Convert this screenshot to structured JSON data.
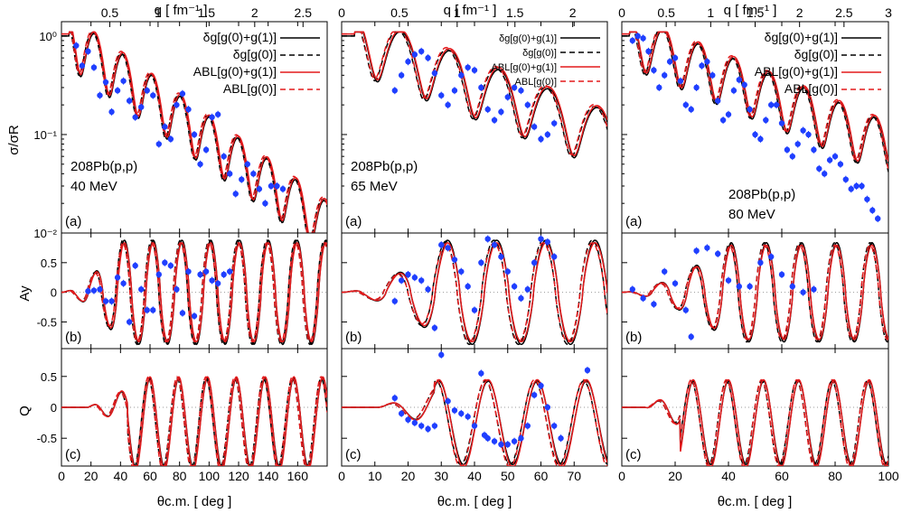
{
  "figure": {
    "top_axis_label": "q [ fm⁻¹ ]",
    "bottom_axis_label": "θc.m. [ deg ]",
    "panel_letters": [
      "(a)",
      "(b)",
      "(c)"
    ],
    "row_ylabels": [
      "σ/σR",
      "Ay",
      "Q"
    ],
    "legend": [
      "δg[g(0)+g(1)]",
      "δg[g(0)]",
      "ABL[g(0)+g(1)]",
      "ABL[g(0)]"
    ],
    "colors": {
      "black": "#000000",
      "red": "#e41a1c",
      "data": "#1f3fff",
      "zero_line": "#999999"
    }
  },
  "chart_data": [
    {
      "type": "line",
      "column": 0,
      "reaction": "208Pb(p,p)",
      "energy": "40 MeV",
      "x_range": [
        0,
        180
      ],
      "x_ticks": [
        0,
        20,
        40,
        60,
        80,
        100,
        120,
        140,
        160
      ],
      "q_range": [
        0,
        2.75
      ],
      "q_ticks": [
        "0.5",
        "1",
        "1.5",
        "2",
        "2.5"
      ],
      "q_tick_values": [
        0.5,
        1.0,
        1.5,
        2.0,
        2.5
      ],
      "cross_section": {
        "ylim": [
          0.01,
          1.4
        ],
        "scale": "log",
        "y_ticks": [
          "10⁻²",
          "10⁻¹",
          "10⁰"
        ],
        "model": {
          "x0": 5,
          "period": 19.5,
          "drop": 0.025,
          "phase": 0.6,
          "amp": 0.55,
          "noise": 0.08
        },
        "data": {
          "x": [
            10,
            14,
            18,
            22,
            26,
            30,
            34,
            38,
            42,
            46,
            50,
            54,
            58,
            62,
            66,
            70,
            74,
            78,
            82,
            86,
            90,
            94,
            98,
            102,
            106,
            110,
            114,
            118,
            122,
            126,
            130,
            134,
            138,
            142,
            146,
            150
          ],
          "y": [
            0.8,
            0.5,
            0.7,
            0.48,
            0.25,
            0.34,
            0.17,
            0.28,
            0.35,
            0.22,
            0.15,
            0.19,
            0.28,
            0.25,
            0.08,
            0.12,
            0.09,
            0.2,
            0.26,
            0.18,
            0.1,
            0.05,
            0.07,
            0.15,
            0.16,
            0.06,
            0.04,
            0.025,
            0.035,
            0.05,
            0.04,
            0.028,
            0.02,
            0.03,
            0.03,
            0.028
          ]
        }
      },
      "analyzing_power": {
        "ylim": [
          -0.95,
          1.0
        ],
        "y_ticks": [
          -0.5,
          0,
          0.5
        ],
        "model": {
          "period": 19.5,
          "amp": 0.85,
          "phase": 0.4,
          "growth": 0.006
        },
        "data": {
          "x": [
            18,
            22,
            26,
            30,
            34,
            38,
            42,
            46,
            50,
            54,
            58,
            62,
            66,
            70,
            74,
            78,
            82,
            86,
            90,
            94,
            98,
            102,
            106,
            110,
            114
          ],
          "y": [
            0.02,
            0.03,
            0.05,
            -0.15,
            -0.15,
            0.25,
            0.15,
            -0.5,
            0.45,
            0.05,
            -0.3,
            -0.3,
            0.3,
            0.5,
            0.45,
            0.05,
            -0.35,
            0.35,
            -0.4,
            0.3,
            0.35,
            0.2,
            0.15,
            0.3,
            0.35
          ]
        }
      },
      "spin_rotation": {
        "ylim": [
          -0.95,
          0.95
        ],
        "y_ticks": [
          -0.5,
          0,
          0.5
        ],
        "model": {
          "period": 19.5,
          "amp": 0.8,
          "phase": 1.1,
          "onset": 45
        }
      }
    },
    {
      "type": "line",
      "column": 1,
      "reaction": "208Pb(p,p)",
      "energy": "65 MeV",
      "x_range": [
        0,
        80
      ],
      "x_ticks": [
        0,
        10,
        20,
        30,
        40,
        50,
        60,
        70
      ],
      "q_range": [
        0,
        2.3
      ],
      "q_ticks": [
        "0",
        "0.5",
        "1",
        "1.5",
        "2"
      ],
      "q_tick_values": [
        0.0,
        0.5,
        1.0,
        1.5,
        2.0
      ],
      "cross_section": {
        "ylim": [
          0.01,
          1.4
        ],
        "scale": "log",
        "y_ticks": [
          "10⁻²",
          "10⁻¹",
          "10⁰"
        ],
        "model": {
          "x0": 4,
          "period": 14.8,
          "drop": 0.03,
          "phase": 0.3,
          "amp": 0.6,
          "noise": 0.0
        },
        "data": {
          "x": [
            16,
            18,
            20,
            22,
            24,
            26,
            28,
            30,
            32,
            34,
            36,
            38,
            40,
            42,
            44,
            46,
            48,
            50,
            52,
            54,
            56,
            58,
            60,
            62,
            64
          ],
          "y": [
            0.28,
            0.4,
            0.55,
            0.65,
            0.7,
            0.6,
            0.42,
            0.25,
            0.2,
            0.28,
            0.4,
            0.48,
            0.45,
            0.3,
            0.18,
            0.14,
            0.17,
            0.24,
            0.3,
            0.28,
            0.2,
            0.12,
            0.09,
            0.1,
            0.13
          ]
        }
      },
      "analyzing_power": {
        "ylim": [
          -0.95,
          1.0
        ],
        "y_ticks": [
          -0.5,
          0,
          0.5
        ],
        "model": {
          "period": 14.8,
          "amp": 0.85,
          "phase": 0.6,
          "growth": 0.01
        },
        "data": {
          "x": [
            16,
            18,
            20,
            22,
            24,
            26,
            28,
            30,
            32,
            34,
            36,
            38,
            40,
            42,
            44,
            46,
            48,
            50,
            52,
            54,
            56,
            58,
            60,
            62,
            64
          ],
          "y": [
            -0.15,
            0.2,
            0.3,
            0.25,
            0.2,
            0.05,
            -0.6,
            0.8,
            0.75,
            0.55,
            0.35,
            0.1,
            -0.3,
            0.5,
            0.9,
            0.8,
            0.6,
            0.35,
            0.1,
            -0.1,
            0.05,
            0.5,
            0.9,
            0.85,
            0.6
          ]
        }
      },
      "spin_rotation": {
        "ylim": [
          -0.95,
          0.95
        ],
        "y_ticks": [
          -0.5,
          0,
          0.5
        ],
        "model": {
          "period": 14.8,
          "amp": 0.75,
          "phase": 1.7,
          "onset": 28
        },
        "data": {
          "x": [
            16,
            18,
            20,
            22,
            24,
            26,
            28,
            30,
            32,
            34,
            36,
            38,
            40,
            42,
            43,
            44,
            46,
            48,
            50,
            52,
            54,
            56,
            58,
            60,
            62,
            64,
            66,
            74
          ],
          "y": [
            0.15,
            -0.1,
            -0.2,
            -0.25,
            -0.3,
            -0.35,
            -0.3,
            0.85,
            0.1,
            -0.05,
            -0.1,
            -0.15,
            -0.3,
            0.55,
            -0.45,
            -0.5,
            -0.55,
            -0.6,
            -0.6,
            -0.55,
            -0.5,
            -0.3,
            0.2,
            0.35,
            0.0,
            -0.3,
            -0.5,
            0.6
          ]
        }
      }
    },
    {
      "type": "line",
      "column": 2,
      "reaction": "208Pb(p,p)",
      "energy": "80 MeV",
      "x_range": [
        0,
        100
      ],
      "x_ticks": [
        0,
        20,
        40,
        60,
        80,
        100
      ],
      "q_range": [
        0,
        3.0
      ],
      "q_ticks": [
        "0",
        "0.5",
        "1",
        "1.5",
        "2",
        "2.5",
        "3"
      ],
      "q_tick_values": [
        0.0,
        0.5,
        1.0,
        1.5,
        2.0,
        2.5,
        3.0
      ],
      "cross_section": {
        "ylim": [
          0.01,
          1.4
        ],
        "scale": "log",
        "y_ticks": [
          "10⁻²",
          "10⁻¹",
          "10⁰"
        ],
        "model": {
          "x0": 3,
          "period": 13.2,
          "drop": 0.026,
          "phase": 0.2,
          "amp": 0.55,
          "noise": 0.0
        },
        "data": {
          "x": [
            4,
            6,
            8,
            10,
            12,
            14,
            16,
            18,
            20,
            22,
            24,
            26,
            28,
            30,
            32,
            34,
            36,
            38,
            40,
            42,
            44,
            46,
            48,
            50,
            52,
            54,
            56,
            58,
            60,
            62,
            64,
            66,
            68,
            70,
            72,
            74,
            76,
            78,
            80,
            82,
            84,
            86,
            88,
            90,
            92,
            94,
            96
          ],
          "y": [
            0.9,
            1.0,
            0.95,
            0.7,
            0.45,
            0.3,
            0.4,
            0.55,
            0.6,
            0.35,
            0.2,
            0.18,
            0.3,
            0.5,
            0.55,
            0.4,
            0.22,
            0.14,
            0.16,
            0.28,
            0.36,
            0.32,
            0.18,
            0.1,
            0.09,
            0.14,
            0.2,
            0.2,
            0.13,
            0.07,
            0.06,
            0.08,
            0.11,
            0.1,
            0.07,
            0.045,
            0.04,
            0.055,
            0.06,
            0.05,
            0.035,
            0.028,
            0.03,
            0.03,
            0.022,
            0.017,
            0.014
          ]
        }
      },
      "analyzing_power": {
        "ylim": [
          -0.95,
          1.0
        ],
        "y_ticks": [
          -0.5,
          0,
          0.5
        ],
        "model": {
          "period": 13.2,
          "amp": 0.8,
          "phase": 0.9,
          "growth": 0.006
        },
        "data": {
          "x": [
            4,
            8,
            12,
            16,
            20,
            24,
            26,
            28,
            32,
            36,
            40,
            44,
            48,
            52,
            56,
            60,
            64,
            68,
            72
          ],
          "y": [
            0.05,
            -0.1,
            -0.2,
            0.35,
            0.15,
            -0.3,
            -0.75,
            0.7,
            0.75,
            0.65,
            0.2,
            0.1,
            0.1,
            0.5,
            0.6,
            0.3,
            0.1,
            0.0,
            0.05
          ]
        }
      },
      "spin_rotation": {
        "ylim": [
          -0.95,
          0.95
        ],
        "y_ticks": [
          -0.5,
          0,
          0.5
        ],
        "model": {
          "period": 13.2,
          "amp": 0.75,
          "phase": 1.4,
          "onset": 22
        }
      }
    }
  ]
}
